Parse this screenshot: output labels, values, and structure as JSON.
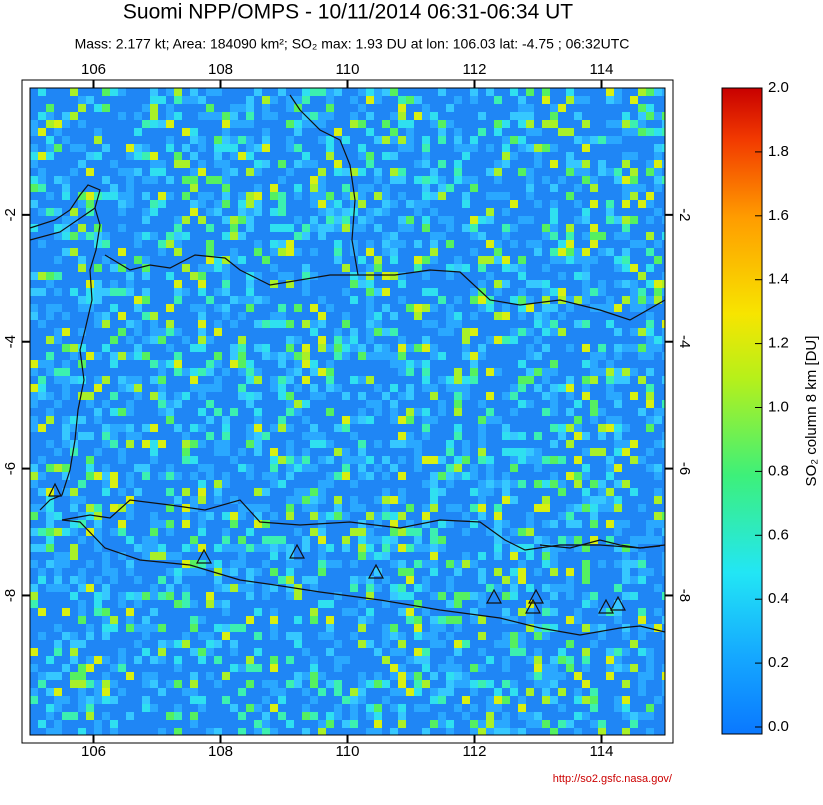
{
  "chart_data": {
    "type": "map",
    "title": "Suomi NPP/OMPS - 10/11/2014 06:31-06:34 UT",
    "subtitle": "Mass: 2.177 kt; Area: 184090 km²; SO₂ max: 1.93 DU at lon: 106.03 lat: -4.75 ; 06:32UTC",
    "xlim": [
      105,
      115
    ],
    "xticks": [
      106,
      108,
      110,
      112,
      114
    ],
    "ylim": [
      -10.2,
      0
    ],
    "yticks": [
      -2,
      -4,
      -6,
      -8
    ],
    "colorbar": {
      "label": "SO₂ column 8 km [DU]",
      "lim": [
        0,
        2
      ],
      "ticks": [
        {
          "value": 0,
          "label": "0.0"
        },
        0.2,
        0.4,
        0.6,
        0.8,
        {
          "value": 1,
          "label": "1.0"
        },
        1.2,
        1.4,
        1.6,
        1.8,
        {
          "value": 2,
          "label": "2.0"
        }
      ]
    },
    "credit": "http://so2.gsfc.nasa.gov/"
  }
}
